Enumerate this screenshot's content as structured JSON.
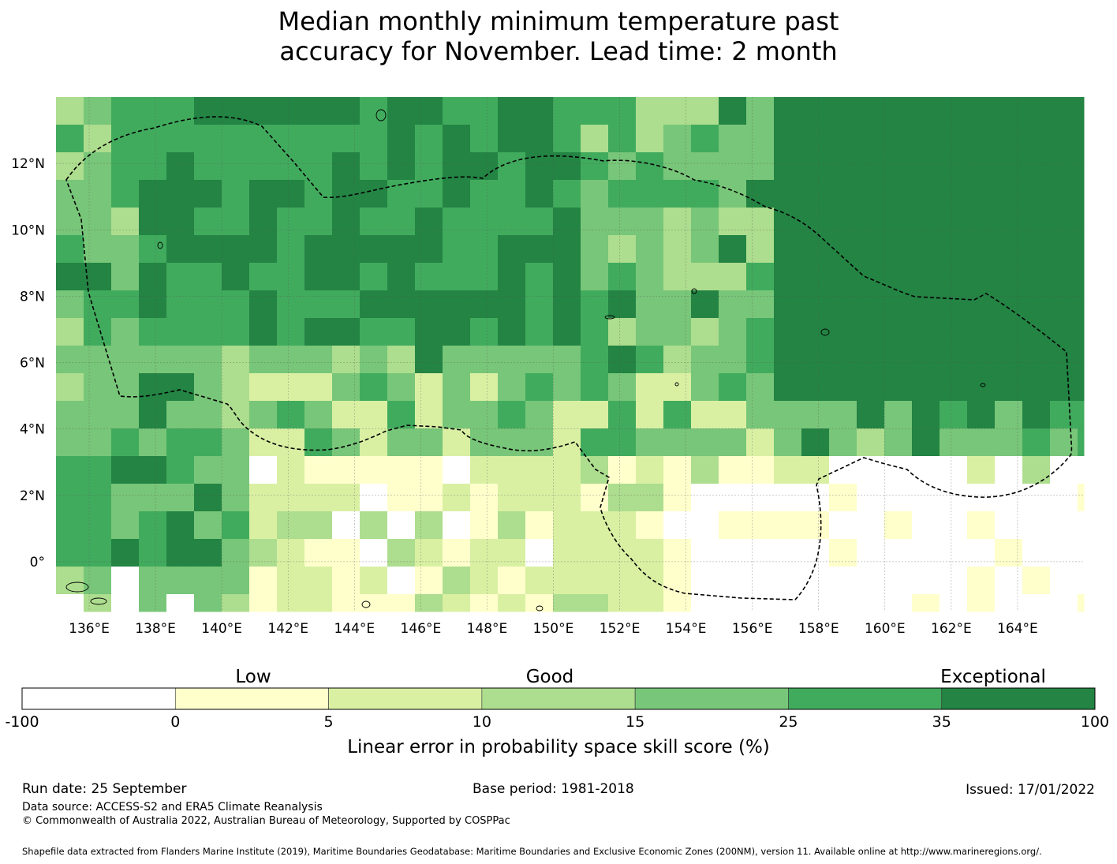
{
  "title": {
    "line1": "Median monthly minimum temperature past",
    "line2": "accuracy for November. Lead time: 2 month"
  },
  "map": {
    "x_ticks": [
      "136°E",
      "138°E",
      "140°E",
      "142°E",
      "144°E",
      "146°E",
      "148°E",
      "150°E",
      "152°E",
      "154°E",
      "156°E",
      "158°E",
      "160°E",
      "162°E",
      "164°E"
    ],
    "y_ticks": [
      "12°N",
      "10°N",
      "8°N",
      "6°N",
      "4°N",
      "2°N",
      "0°"
    ],
    "lon_range": [
      135,
      166
    ],
    "lat_range": [
      -1.5,
      14
    ]
  },
  "colorbar": {
    "category_labels": [
      "Low",
      "Good",
      "Exceptional"
    ],
    "boundaries": [
      "-100",
      "0",
      "5",
      "10",
      "15",
      "25",
      "35",
      "100"
    ],
    "colors": [
      "#ffffff",
      "#ffffcc",
      "#d9f0a3",
      "#addd8e",
      "#78c679",
      "#41ab5d",
      "#238443"
    ],
    "label": "Linear error in probability space skill score (%)"
  },
  "footer": {
    "run_date": "Run date: 25 September",
    "base_period": "Base period: 1981-2018",
    "issued": "Issued: 17/01/2022",
    "data_source": "Data source: ACCESS-S2 and ERA5 Climate Reanalysis",
    "copyright": "© Commonwealth of Australia 2022, Australian Bureau of Meteorology, Supported by COSPPac",
    "shapefile": "Shapefile data extracted from Flanders Marine Institute (2019), Maritime Boundaries Geodatabase: Maritime Boundaries and Exclusive Economic Zones (200NM), version 11. Available online at http://www.marineregions.org/."
  }
}
